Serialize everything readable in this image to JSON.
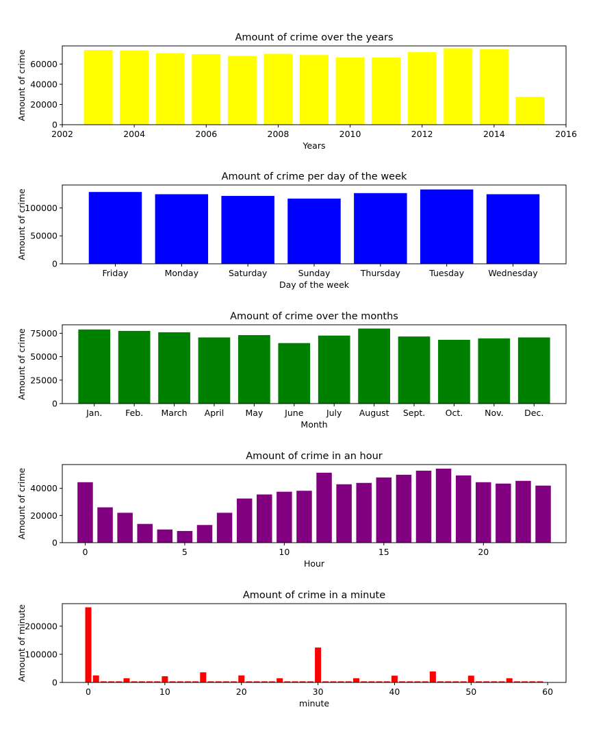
{
  "chart_data": [
    {
      "type": "bar",
      "title": "Amount of crime over the years",
      "xlabel": "Years",
      "ylabel": "Amount of crime",
      "color": "#ffff00",
      "x": [
        2003,
        2004,
        2005,
        2006,
        2007,
        2008,
        2009,
        2010,
        2011,
        2012,
        2013,
        2014,
        2015
      ],
      "values": [
        73900,
        73500,
        70800,
        69900,
        68000,
        70200,
        69000,
        66500,
        66600,
        71800,
        75600,
        74800,
        27500
      ],
      "xlim": [
        2002,
        2016
      ],
      "ylim": [
        0,
        78000
      ],
      "xticks": [
        2002,
        2004,
        2006,
        2008,
        2010,
        2012,
        2014,
        2016
      ],
      "yticks": [
        0,
        20000,
        40000,
        60000
      ]
    },
    {
      "type": "bar",
      "title": "Amount of crime per day of the week",
      "xlabel": "Day of the week",
      "ylabel": "Amount of crime",
      "color": "#0000ff",
      "categories": [
        "Friday",
        "Monday",
        "Saturday",
        "Sunday",
        "Thursday",
        "Tuesday",
        "Wednesday"
      ],
      "values": [
        128500,
        124500,
        121500,
        116700,
        126500,
        133000,
        124500
      ],
      "ylim": [
        0,
        141000
      ],
      "yticks": [
        0,
        50000,
        100000
      ]
    },
    {
      "type": "bar",
      "title": "Amount of crime over the months",
      "xlabel": "Month",
      "ylabel": "Amount of crime",
      "color": "#008000",
      "categories": [
        "Jan.",
        "Feb.",
        "March",
        "April",
        "May",
        "June",
        "July",
        "August",
        "Sept.",
        "Oct.",
        "Nov.",
        "Dec."
      ],
      "values": [
        79000,
        77500,
        76000,
        70500,
        73000,
        64500,
        72500,
        80000,
        71500,
        68000,
        69500,
        70500
      ],
      "ylim": [
        0,
        84000
      ],
      "yticks": [
        0,
        25000,
        50000,
        75000
      ]
    },
    {
      "type": "bar",
      "title": "Amount of crime in an hour",
      "xlabel": "Hour",
      "ylabel": "Amount of crime",
      "color": "#800080",
      "x": [
        0,
        1,
        2,
        3,
        4,
        5,
        6,
        7,
        8,
        9,
        10,
        11,
        12,
        13,
        14,
        15,
        16,
        17,
        18,
        19,
        20,
        21,
        22,
        23
      ],
      "values": [
        44500,
        26000,
        22000,
        13800,
        9700,
        8600,
        13000,
        22000,
        32500,
        35500,
        37500,
        38200,
        51500,
        43000,
        44000,
        48000,
        50000,
        53000,
        54500,
        49500,
        44500,
        43500,
        45500,
        42000
      ],
      "xlim": [
        -1.15,
        24.15
      ],
      "ylim": [
        0,
        57500
      ],
      "xticks": [
        0,
        5,
        10,
        15,
        20
      ],
      "yticks": [
        0,
        20000,
        40000
      ]
    },
    {
      "type": "bar",
      "title": "Amount of crime in a minute",
      "xlabel": "minute",
      "ylabel": "Amount of minute",
      "color": "#ff0000",
      "x": [
        0,
        1,
        2,
        3,
        4,
        5,
        6,
        7,
        8,
        9,
        10,
        11,
        12,
        13,
        14,
        15,
        16,
        17,
        18,
        19,
        20,
        21,
        22,
        23,
        24,
        25,
        26,
        27,
        28,
        29,
        30,
        31,
        32,
        33,
        34,
        35,
        36,
        37,
        38,
        39,
        40,
        41,
        42,
        43,
        44,
        45,
        46,
        47,
        48,
        49,
        50,
        51,
        52,
        53,
        54,
        55,
        56,
        57,
        58,
        59
      ],
      "values": [
        267000,
        25000,
        4000,
        4000,
        4000,
        15000,
        4000,
        4000,
        4000,
        4000,
        22000,
        4000,
        4000,
        4000,
        4000,
        36000,
        4000,
        4000,
        4000,
        4000,
        25000,
        4000,
        4000,
        4000,
        4000,
        15000,
        4000,
        4000,
        4000,
        4000,
        124000,
        4000,
        4000,
        4000,
        4000,
        15000,
        4000,
        4000,
        4000,
        4000,
        24000,
        4000,
        4000,
        4000,
        4000,
        39000,
        4000,
        4000,
        4000,
        4000,
        24000,
        4000,
        4000,
        4000,
        4000,
        15000,
        4000,
        4000,
        4000,
        4000
      ],
      "xlim": [
        -3.4,
        62.4
      ],
      "ylim": [
        0,
        280000
      ],
      "xticks": [
        0,
        10,
        20,
        30,
        40,
        50,
        60
      ],
      "yticks": [
        0,
        100000,
        200000
      ]
    }
  ]
}
